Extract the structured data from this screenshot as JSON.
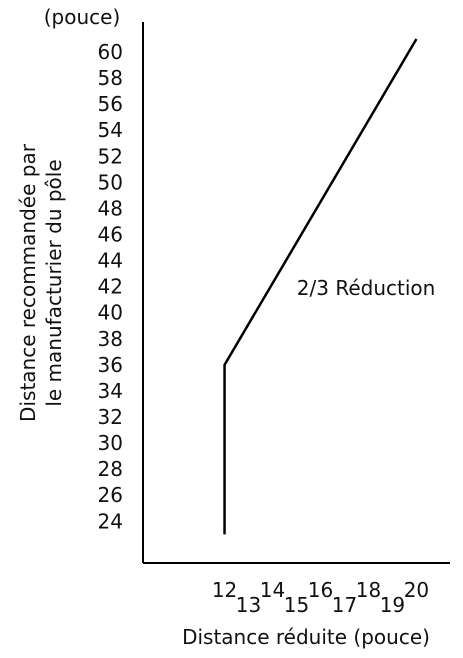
{
  "chart_data": {
    "type": "line",
    "title": "",
    "unit_label": "(pouce)",
    "xlabel": "Distance réduite (pouce)",
    "ylabel_lines": [
      "Distance recommandée par",
      "le manufacturier du pôle"
    ],
    "xlim": [
      8.6,
      21.4
    ],
    "ylim": [
      20.8,
      62.3
    ],
    "x_ticks_upper": [
      "12",
      "14",
      "16",
      "18",
      "20"
    ],
    "x_ticks_lower": [
      "13",
      "15",
      "17",
      "19"
    ],
    "y_ticks": [
      "24",
      "26",
      "28",
      "30",
      "32",
      "34",
      "36",
      "38",
      "40",
      "42",
      "44",
      "46",
      "48",
      "50",
      "52",
      "54",
      "56",
      "58",
      "60"
    ],
    "series": [
      {
        "name": "2/3 Réduction",
        "x": [
          12,
          12,
          20
        ],
        "y": [
          23,
          36,
          61
        ]
      }
    ],
    "annotations": [
      {
        "text": "2/3 Réduction",
        "x": 17.9,
        "y": 41.9
      }
    ],
    "grid": false,
    "legend": "none"
  }
}
